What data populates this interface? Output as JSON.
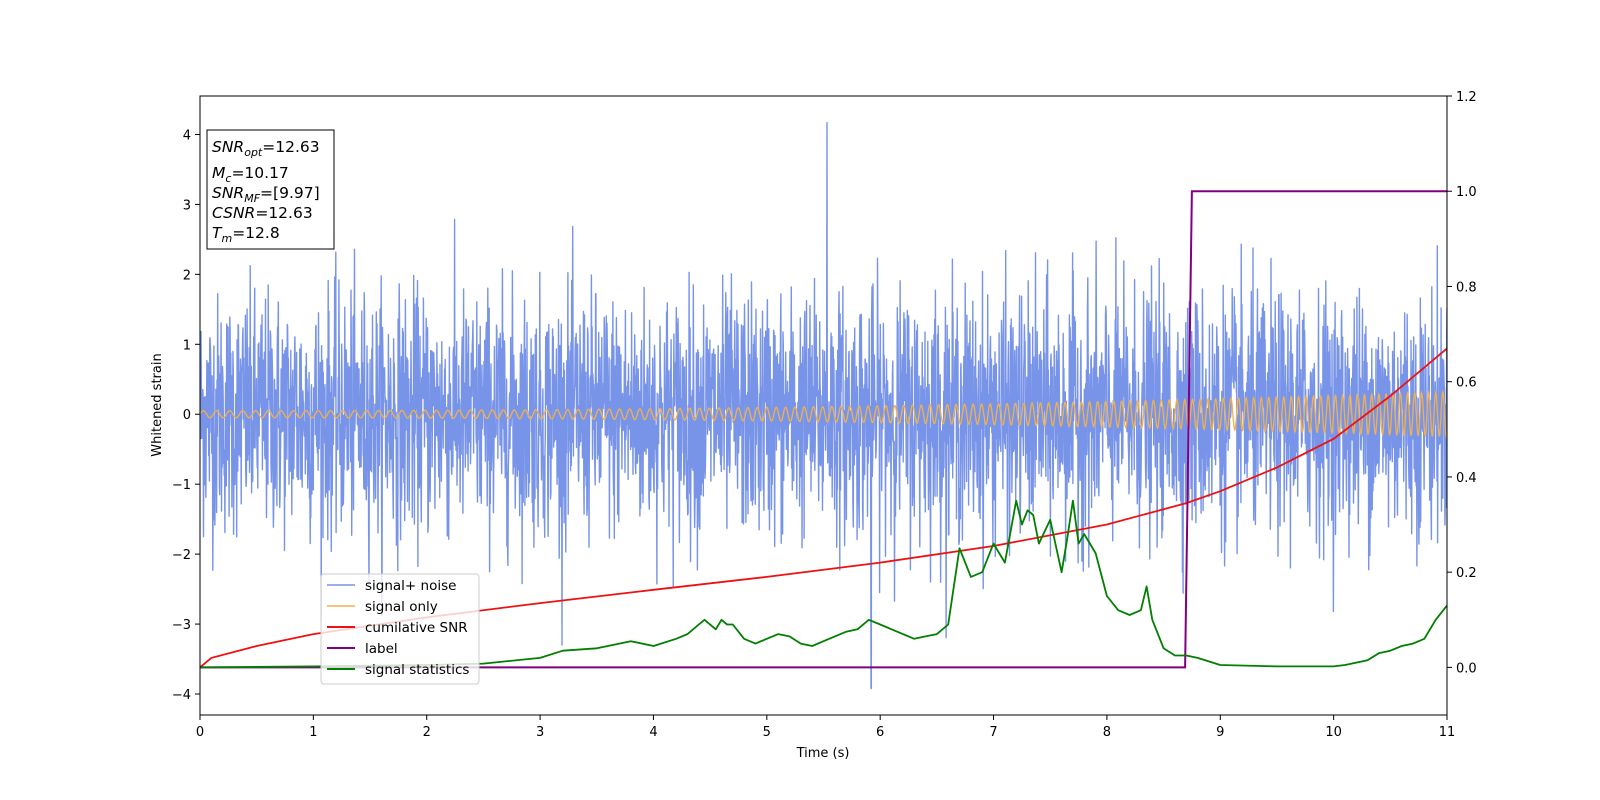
{
  "chart_data": {
    "type": "line",
    "xlabel": "Time (s)",
    "ylabel": "Whitened strain",
    "xlim": [
      0,
      11
    ],
    "ylim_left": [
      -4.3,
      4.55
    ],
    "ylim_right": [
      -0.1,
      1.2
    ],
    "x_ticks": [
      "0",
      "1",
      "2",
      "3",
      "4",
      "5",
      "6",
      "7",
      "8",
      "9",
      "10",
      "11"
    ],
    "y_left_ticks": [
      "4",
      "3",
      "2",
      "1",
      "0",
      "−1",
      "−2",
      "−3",
      "−4"
    ],
    "y_right_ticks": [
      "1.2",
      "1.0",
      "0.8",
      "0.6",
      "0.4",
      "0.2",
      "0.0"
    ],
    "grid": false,
    "legend_position": "lower-left",
    "annotation": {
      "snr_opt": {
        "base": "SNR",
        "sub": "opt",
        "value": "=12.63"
      },
      "mc": {
        "base": "M",
        "sub": "c",
        "value": "=10.17"
      },
      "snr_mf": {
        "base": "SNR",
        "sub": "MF",
        "value": "=[9.97]"
      },
      "csnr": {
        "base": "CSNR",
        "value": "=12.63"
      },
      "tm": {
        "base": "T",
        "sub": "m",
        "value": "=12.8"
      }
    },
    "series": [
      {
        "name": "signal+ noise",
        "color": "#7894e8",
        "axis": "left",
        "description_values": {
          "std": 0.85,
          "max": 4.17,
          "max_at": 5.53,
          "min": -3.92,
          "min_at": 5.92
        }
      },
      {
        "name": "signal only",
        "color": "#f0b050",
        "axis": "left",
        "amplitude_start": 0.05,
        "amplitude_end": 0.32
      },
      {
        "name": "cumilative SNR",
        "color": "#ee1111",
        "axis": "right",
        "x": [
          0,
          0.1,
          0.5,
          1,
          2,
          3,
          4,
          5,
          6,
          7,
          8,
          8.7,
          9,
          9.5,
          10,
          10.5,
          11
        ],
        "y": [
          0.0,
          0.02,
          0.045,
          0.07,
          0.105,
          0.135,
          0.163,
          0.19,
          0.22,
          0.255,
          0.3,
          0.345,
          0.37,
          0.42,
          0.48,
          0.57,
          0.67
        ]
      },
      {
        "name": "label",
        "color": "#800080",
        "axis": "right",
        "x": [
          0,
          8.69,
          8.75,
          11
        ],
        "y": [
          0,
          0,
          1,
          1
        ]
      },
      {
        "name": "signal statistics",
        "color": "#007f00",
        "axis": "right",
        "x": [
          0,
          1,
          2,
          2.5,
          3,
          3.2,
          3.5,
          3.7,
          3.8,
          4.0,
          4.2,
          4.3,
          4.4,
          4.45,
          4.55,
          4.6,
          4.65,
          4.7,
          4.8,
          4.9,
          5.0,
          5.1,
          5.2,
          5.3,
          5.4,
          5.5,
          5.6,
          5.7,
          5.8,
          5.9,
          6.0,
          6.1,
          6.2,
          6.3,
          6.4,
          6.5,
          6.6,
          6.7,
          6.8,
          6.9,
          7.0,
          7.1,
          7.2,
          7.25,
          7.3,
          7.35,
          7.4,
          7.5,
          7.6,
          7.65,
          7.7,
          7.75,
          7.8,
          7.9,
          8.0,
          8.1,
          8.2,
          8.3,
          8.35,
          8.4,
          8.5,
          8.6,
          8.7,
          8.8,
          9.0,
          9.5,
          10.0,
          10.1,
          10.2,
          10.3,
          10.4,
          10.5,
          10.6,
          10.7,
          10.8,
          10.9,
          11.0
        ],
        "y": [
          0,
          0.002,
          0.005,
          0.008,
          0.02,
          0.035,
          0.04,
          0.05,
          0.055,
          0.045,
          0.06,
          0.07,
          0.09,
          0.1,
          0.08,
          0.1,
          0.09,
          0.09,
          0.06,
          0.05,
          0.06,
          0.07,
          0.065,
          0.05,
          0.045,
          0.055,
          0.065,
          0.075,
          0.08,
          0.1,
          0.09,
          0.08,
          0.07,
          0.06,
          0.065,
          0.07,
          0.09,
          0.25,
          0.19,
          0.2,
          0.26,
          0.22,
          0.35,
          0.3,
          0.33,
          0.32,
          0.26,
          0.31,
          0.2,
          0.27,
          0.35,
          0.26,
          0.28,
          0.24,
          0.15,
          0.12,
          0.11,
          0.12,
          0.17,
          0.1,
          0.04,
          0.025,
          0.025,
          0.02,
          0.005,
          0.002,
          0.002,
          0.005,
          0.01,
          0.015,
          0.03,
          0.035,
          0.045,
          0.05,
          0.06,
          0.1,
          0.13
        ]
      }
    ]
  }
}
